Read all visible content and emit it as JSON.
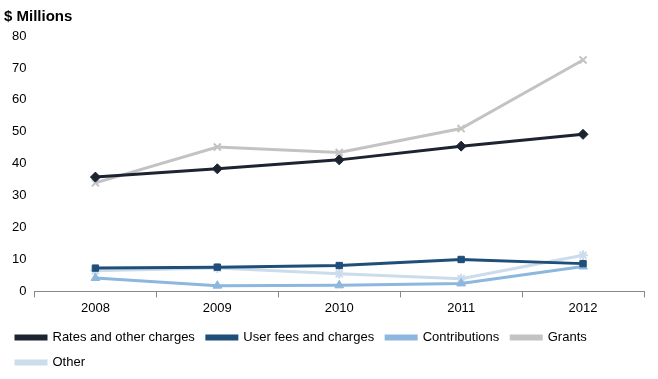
{
  "chart_data": {
    "type": "line",
    "title": "$ Millions",
    "categories": [
      "2008",
      "2009",
      "2010",
      "2011",
      "2012"
    ],
    "series": [
      {
        "name": "Rates and other charges",
        "color": "#1c2331",
        "marker": "diamond",
        "line_style": "solid",
        "values": [
          35.8,
          38.4,
          41.2,
          45.5,
          49.2
        ]
      },
      {
        "name": "User fees and charges",
        "color": "#1f4e79",
        "marker": "square",
        "line_style": "solid",
        "values": [
          7.3,
          7.6,
          8.1,
          10.0,
          8.7
        ]
      },
      {
        "name": "Contributions",
        "color": "#8db7df",
        "marker": "triangle",
        "line_style": "solid",
        "values": [
          4.2,
          1.8,
          1.9,
          2.5,
          7.8
        ]
      },
      {
        "name": "Grants",
        "color": "#c3c3c3",
        "marker": "x",
        "line_style": "solid",
        "values": [
          34.0,
          45.2,
          43.5,
          51.0,
          72.5
        ]
      },
      {
        "name": "Other",
        "color": "#cbdcec",
        "marker": "star",
        "line_style": "solid",
        "values": [
          6.5,
          7.3,
          5.5,
          4.0,
          11.3
        ]
      }
    ],
    "ylim": [
      0,
      80
    ],
    "yticks": [
      0,
      10,
      20,
      30,
      40,
      50,
      60,
      70,
      80
    ],
    "grid": false,
    "legend": "bottom"
  }
}
